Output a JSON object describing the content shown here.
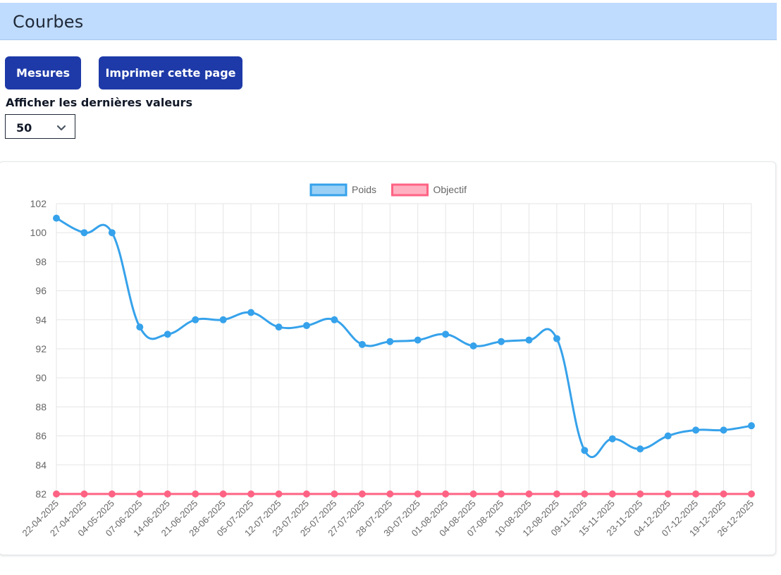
{
  "header": {
    "title": "Courbes"
  },
  "toolbar": {
    "measures_label": "Mesures",
    "print_label": "Imprimer cette page"
  },
  "filter": {
    "label": "Afficher les dernières valeurs",
    "selected": "50"
  },
  "chart_data": {
    "type": "line",
    "categories": [
      "22-04-2025",
      "27-04-2025",
      "04-05-2025",
      "07-06-2025",
      "14-06-2025",
      "21-06-2025",
      "28-06-2025",
      "05-07-2025",
      "12-07-2025",
      "23-07-2025",
      "25-07-2025",
      "27-07-2025",
      "28-07-2025",
      "30-07-2025",
      "01-08-2025",
      "04-08-2025",
      "07-08-2025",
      "10-08-2025",
      "12-08-2025",
      "09-11-2025",
      "15-11-2025",
      "23-11-2025",
      "04-12-2025",
      "07-12-2025",
      "19-12-2025",
      "26-12-2025"
    ],
    "series": [
      {
        "name": "Poids",
        "color": "#36a2eb",
        "fill": "#9ad0f5",
        "values": [
          101,
          100,
          100,
          93.5,
          93,
          94,
          94,
          94.5,
          93.5,
          93.6,
          94,
          92.3,
          92.5,
          92.6,
          93,
          92.2,
          92.5,
          92.6,
          92.7,
          85,
          85.8,
          85.1,
          86,
          86.4,
          86.4,
          86.7
        ]
      },
      {
        "name": "Objectif",
        "color": "#ff6384",
        "fill": "#ffb1c1",
        "values": [
          82,
          82,
          82,
          82,
          82,
          82,
          82,
          82,
          82,
          82,
          82,
          82,
          82,
          82,
          82,
          82,
          82,
          82,
          82,
          82,
          82,
          82,
          82,
          82,
          82,
          82
        ]
      }
    ],
    "ylim": [
      82,
      102
    ],
    "yticks": [
      82,
      84,
      86,
      88,
      90,
      92,
      94,
      96,
      98,
      100,
      102
    ],
    "grid": true,
    "legend": "top"
  }
}
